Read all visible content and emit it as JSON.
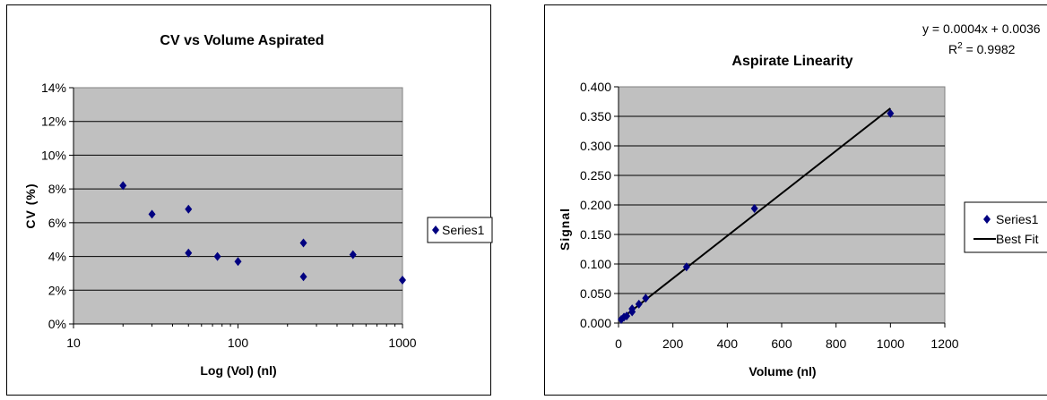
{
  "chart_data": [
    {
      "type": "scatter",
      "title": "CV vs Volume Aspirated",
      "xlabel": "Log (Vol) (nl)",
      "ylabel": "CV (%)",
      "x_scale": "log",
      "xlim": [
        10,
        1000
      ],
      "xticks": [
        "10",
        "100",
        "1000"
      ],
      "ylim": [
        0,
        14
      ],
      "yticks": [
        "0%",
        "2%",
        "4%",
        "6%",
        "8%",
        "10%",
        "12%",
        "14%"
      ],
      "grid": true,
      "legend_position": "right",
      "plot_background": "#c0c0c0",
      "marker_color": "#000080",
      "series": [
        {
          "name": "Series1",
          "x": [
            20,
            30,
            50,
            50,
            75,
            100,
            250,
            250,
            500,
            1000
          ],
          "y": [
            8.2,
            6.5,
            6.8,
            4.2,
            4.0,
            3.7,
            4.8,
            2.8,
            4.1,
            2.6
          ]
        }
      ]
    },
    {
      "type": "scatter",
      "title": "Aspirate Linearity",
      "xlabel": "Volume (nl)",
      "ylabel": "Signal",
      "xlim": [
        0,
        1200
      ],
      "xticks": [
        "0",
        "200",
        "400",
        "600",
        "800",
        "1000",
        "1200"
      ],
      "ylim": [
        0,
        0.4
      ],
      "yticks": [
        "0.000",
        "0.050",
        "0.100",
        "0.150",
        "0.200",
        "0.250",
        "0.300",
        "0.350",
        "0.400"
      ],
      "grid": true,
      "legend_position": "right",
      "plot_background": "#c0c0c0",
      "marker_color": "#000080",
      "line_color": "#000000",
      "annotations": {
        "equation": "y = 0.0004x + 0.0036",
        "r2_label": "R",
        "r2_sup": "2",
        "r2_value": " = 0.9982"
      },
      "series": [
        {
          "name": "Series1",
          "x": [
            10,
            20,
            30,
            50,
            50,
            75,
            100,
            250,
            500,
            1000
          ],
          "y": [
            0.006,
            0.01,
            0.012,
            0.019,
            0.024,
            0.032,
            0.042,
            0.095,
            0.194,
            0.355
          ]
        },
        {
          "name": "Best Fit",
          "x": [
            0,
            1000
          ],
          "y": [
            0.0036,
            0.3636
          ]
        }
      ]
    }
  ]
}
